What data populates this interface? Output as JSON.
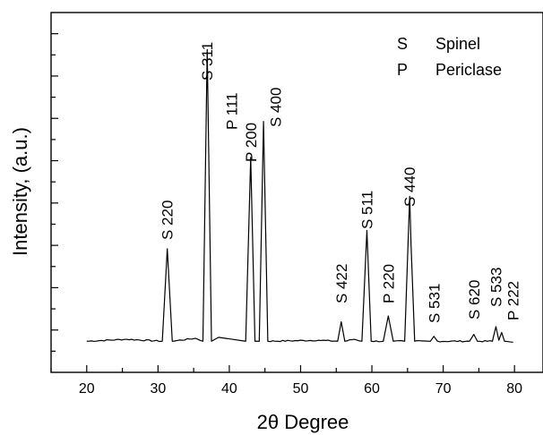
{
  "chart_data": {
    "type": "line",
    "title": "",
    "xlabel": "2θ Degree",
    "ylabel": "Intensity, (a.u.)",
    "xlim": [
      15,
      84
    ],
    "ylim": [
      0,
      370
    ],
    "x_ticks": [
      20,
      30,
      40,
      50,
      60,
      70,
      80
    ],
    "grid": false,
    "y_tick_labels": false,
    "legend": {
      "position": "top-right",
      "entries": [
        {
          "symbol": "S",
          "label": "Spinel"
        },
        {
          "symbol": "P",
          "label": "Periclase"
        }
      ]
    },
    "baseline": 32,
    "series": [
      {
        "x": [
          20,
          25.6,
          30.6,
          31.3,
          32.0,
          35.2,
          36.3,
          36.9,
          37.5,
          38.5,
          42.3,
          43.0,
          43.6,
          44.2,
          44.8,
          45.4,
          52.5,
          55.2,
          55.7,
          56.2,
          57.5,
          58.6,
          59.3,
          59.9,
          61.6,
          62.3,
          63.0,
          64.6,
          65.3,
          65.5,
          66.0,
          68.2,
          68.7,
          69.2,
          73.7,
          74.3,
          74.8,
          76.9,
          77.4,
          77.8,
          78.2,
          78.6,
          79.8
        ],
        "y": [
          32,
          34,
          32,
          127,
          32,
          35,
          32,
          332,
          32,
          36,
          32,
          221,
          32,
          32,
          258,
          32,
          33,
          32,
          52,
          32,
          34,
          32,
          146,
          32,
          32,
          58,
          32,
          32,
          181,
          130,
          32,
          32,
          37,
          32,
          32,
          39,
          32,
          32,
          47,
          33,
          41,
          32,
          31
        ]
      }
    ],
    "peak_labels": [
      {
        "text": "S 220",
        "x": 31.3
      },
      {
        "text": "S 311",
        "x": 36.9
      },
      {
        "text": "P 111",
        "x": 40.3
      },
      {
        "text": "P 200",
        "x": 43.0
      },
      {
        "text": "S 400",
        "x": 46.5
      },
      {
        "text": "S 422",
        "x": 55.7
      },
      {
        "text": "S 511",
        "x": 59.3
      },
      {
        "text": "P 220",
        "x": 62.3
      },
      {
        "text": "S 440",
        "x": 65.3
      },
      {
        "text": "S 531",
        "x": 68.7
      },
      {
        "text": "S 620",
        "x": 74.3
      },
      {
        "text": "S 533",
        "x": 77.4
      },
      {
        "text": "P 222",
        "x": 79.8
      }
    ]
  }
}
